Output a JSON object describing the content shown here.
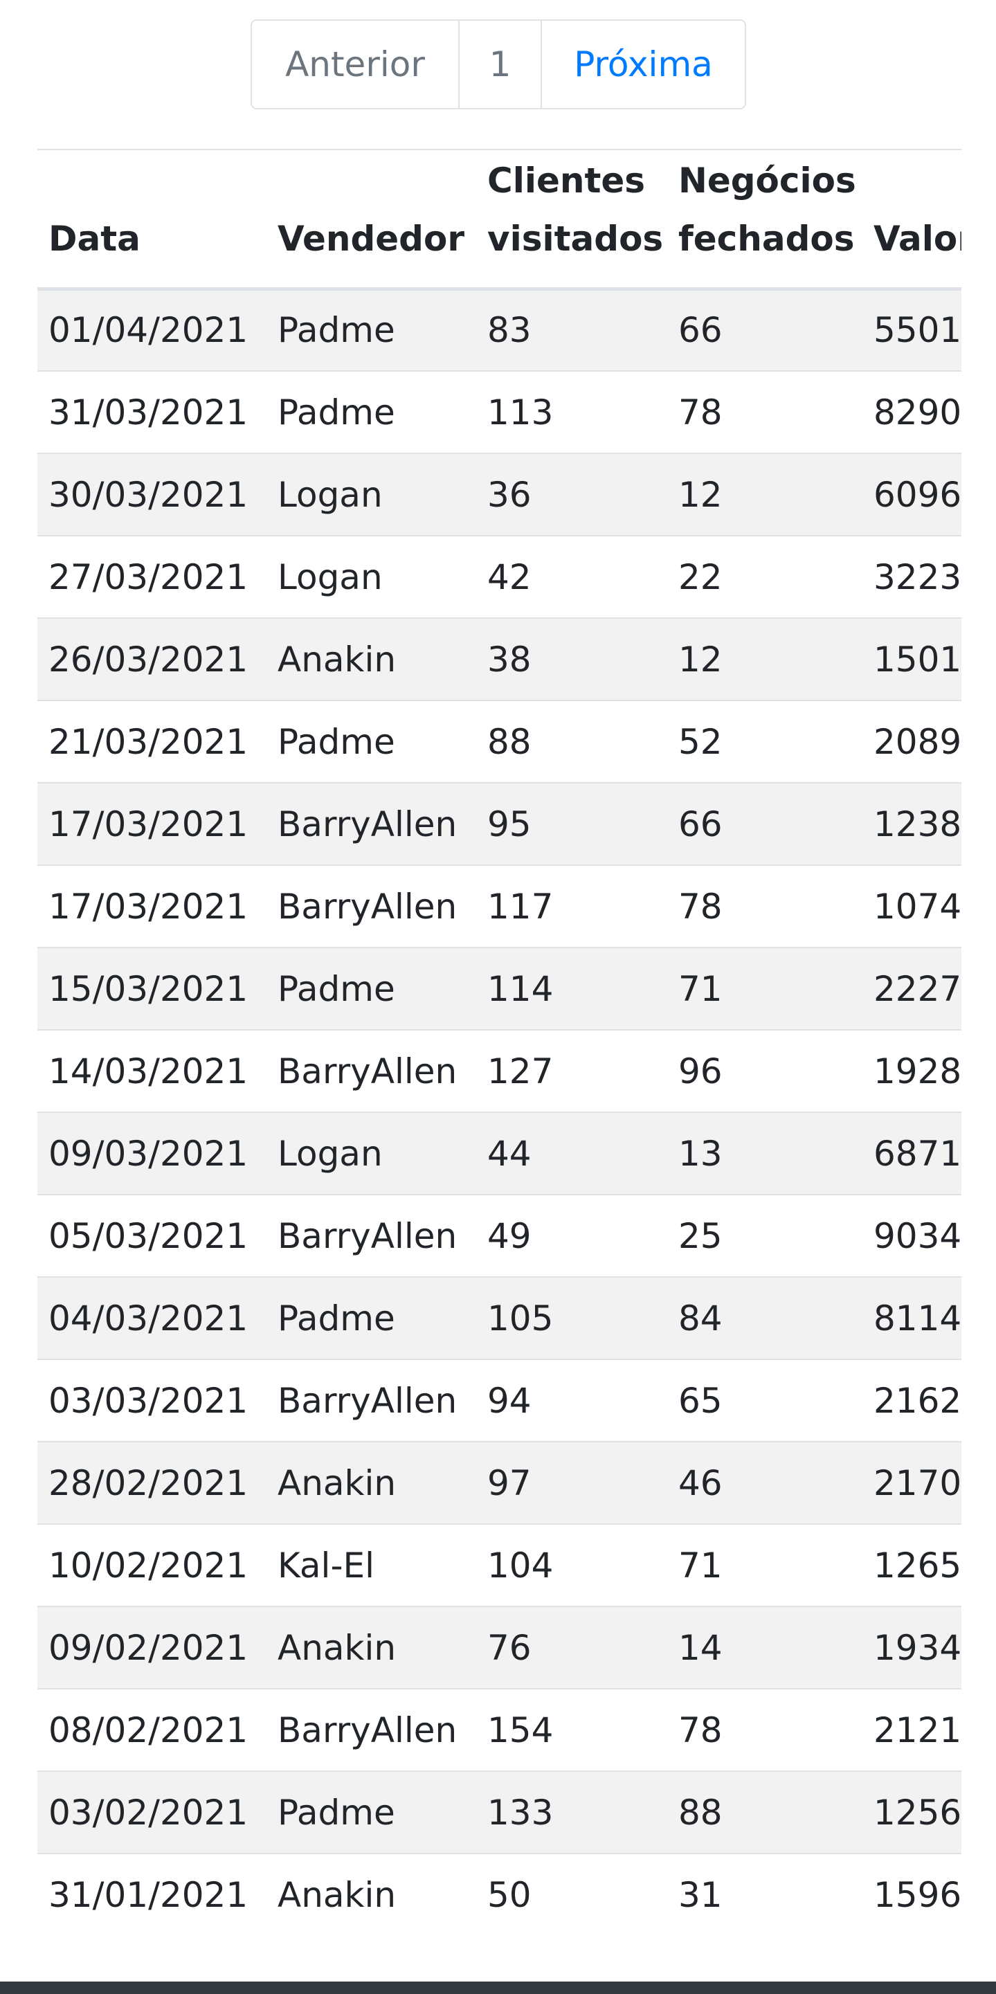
{
  "pagination": {
    "prev_label": "Anterior",
    "current_page": "1",
    "next_label": "Próxima"
  },
  "table": {
    "headers": {
      "date": [
        "Data"
      ],
      "seller": [
        "Vendedor"
      ],
      "clients": [
        "Clientes",
        "visitados"
      ],
      "deals": [
        "Negócios",
        "fechados"
      ],
      "value": [
        "Valor"
      ]
    },
    "rows": [
      {
        "date": "01/04/2021",
        "seller": "Padme",
        "clients": "83",
        "deals": "66",
        "value": "5501"
      },
      {
        "date": "31/03/2021",
        "seller": "Padme",
        "clients": "113",
        "deals": "78",
        "value": "8290"
      },
      {
        "date": "30/03/2021",
        "seller": "Logan",
        "clients": "36",
        "deals": "12",
        "value": "6096"
      },
      {
        "date": "27/03/2021",
        "seller": "Logan",
        "clients": "42",
        "deals": "22",
        "value": "3223"
      },
      {
        "date": "26/03/2021",
        "seller": "Anakin",
        "clients": "38",
        "deals": "12",
        "value": "1501"
      },
      {
        "date": "21/03/2021",
        "seller": "Padme",
        "clients": "88",
        "deals": "52",
        "value": "2089"
      },
      {
        "date": "17/03/2021",
        "seller": "BarryAllen",
        "clients": "95",
        "deals": "66",
        "value": "1238"
      },
      {
        "date": "17/03/2021",
        "seller": "BarryAllen",
        "clients": "117",
        "deals": "78",
        "value": "1074"
      },
      {
        "date": "15/03/2021",
        "seller": "Padme",
        "clients": "114",
        "deals": "71",
        "value": "2227"
      },
      {
        "date": "14/03/2021",
        "seller": "BarryAllen",
        "clients": "127",
        "deals": "96",
        "value": "1928"
      },
      {
        "date": "09/03/2021",
        "seller": "Logan",
        "clients": "44",
        "deals": "13",
        "value": "6871"
      },
      {
        "date": "05/03/2021",
        "seller": "BarryAllen",
        "clients": "49",
        "deals": "25",
        "value": "9034"
      },
      {
        "date": "04/03/2021",
        "seller": "Padme",
        "clients": "105",
        "deals": "84",
        "value": "8114"
      },
      {
        "date": "03/03/2021",
        "seller": "BarryAllen",
        "clients": "94",
        "deals": "65",
        "value": "2162"
      },
      {
        "date": "28/02/2021",
        "seller": "Anakin",
        "clients": "97",
        "deals": "46",
        "value": "2170"
      },
      {
        "date": "10/02/2021",
        "seller": "Kal-El",
        "clients": "104",
        "deals": "71",
        "value": "1265"
      },
      {
        "date": "09/02/2021",
        "seller": "Anakin",
        "clients": "76",
        "deals": "14",
        "value": "1934"
      },
      {
        "date": "08/02/2021",
        "seller": "BarryAllen",
        "clients": "154",
        "deals": "78",
        "value": "2121"
      },
      {
        "date": "03/02/2021",
        "seller": "Padme",
        "clients": "133",
        "deals": "88",
        "value": "1256"
      },
      {
        "date": "31/01/2021",
        "seller": "Anakin",
        "clients": "50",
        "deals": "31",
        "value": "1596"
      }
    ]
  },
  "colors": {
    "link": "#007bff",
    "muted": "#6c757d",
    "stripe": "#f2f2f2",
    "border": "#dee2e6",
    "footer": "#343a40"
  }
}
